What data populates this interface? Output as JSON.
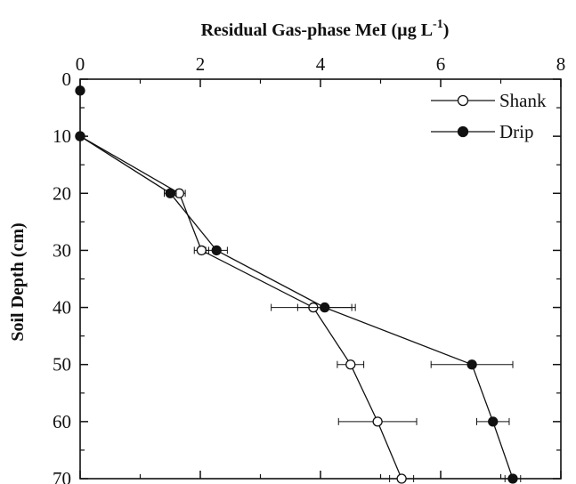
{
  "chart_data": {
    "type": "line",
    "title": "",
    "xlabel": "Residual Gas-phase MeI (µg L",
    "xlabel_sup": "-1",
    "xlabel_suffix": ")",
    "ylabel": "Soil Depth (cm)",
    "xlim": [
      0,
      8
    ],
    "ylim": [
      0,
      70
    ],
    "y_inverted": true,
    "x_axis_position": "top",
    "x_ticks": [
      0,
      2,
      4,
      6,
      8
    ],
    "x_tick_labels": [
      "0",
      "2",
      "4",
      "6",
      "8"
    ],
    "y_ticks": [
      0,
      10,
      20,
      30,
      40,
      50,
      60,
      70
    ],
    "y_tick_labels": [
      "0",
      "10",
      "20",
      "30",
      "40",
      "50",
      "60",
      "70"
    ],
    "grid": false,
    "legend_position": "top-right",
    "series": [
      {
        "name": "Shank",
        "marker": "open-circle",
        "points": [
          {
            "x": 0,
            "y": 10,
            "err": 0
          },
          {
            "x": 1.65,
            "y": 20,
            "err": 0.1
          },
          {
            "x": 2.02,
            "y": 30,
            "err": 0.12
          },
          {
            "x": 3.88,
            "y": 40,
            "err": 0.7
          },
          {
            "x": 4.5,
            "y": 50,
            "err": 0.22
          },
          {
            "x": 4.95,
            "y": 60,
            "err": 0.65
          },
          {
            "x": 5.35,
            "y": 70,
            "err": 0.2
          }
        ]
      },
      {
        "name": "Drip",
        "marker": "filled-circle",
        "points": [
          {
            "x": 0,
            "y": 2,
            "err": 0,
            "connected": false
          },
          {
            "x": 0,
            "y": 10,
            "err": 0
          },
          {
            "x": 1.5,
            "y": 20,
            "err": 0.1
          },
          {
            "x": 2.27,
            "y": 30,
            "err": 0.18
          },
          {
            "x": 4.07,
            "y": 40,
            "err": 0.45
          },
          {
            "x": 6.52,
            "y": 50,
            "err": 0.68
          },
          {
            "x": 6.87,
            "y": 60,
            "err": 0.27
          },
          {
            "x": 7.2,
            "y": 70,
            "err": 0.13
          }
        ]
      }
    ]
  }
}
